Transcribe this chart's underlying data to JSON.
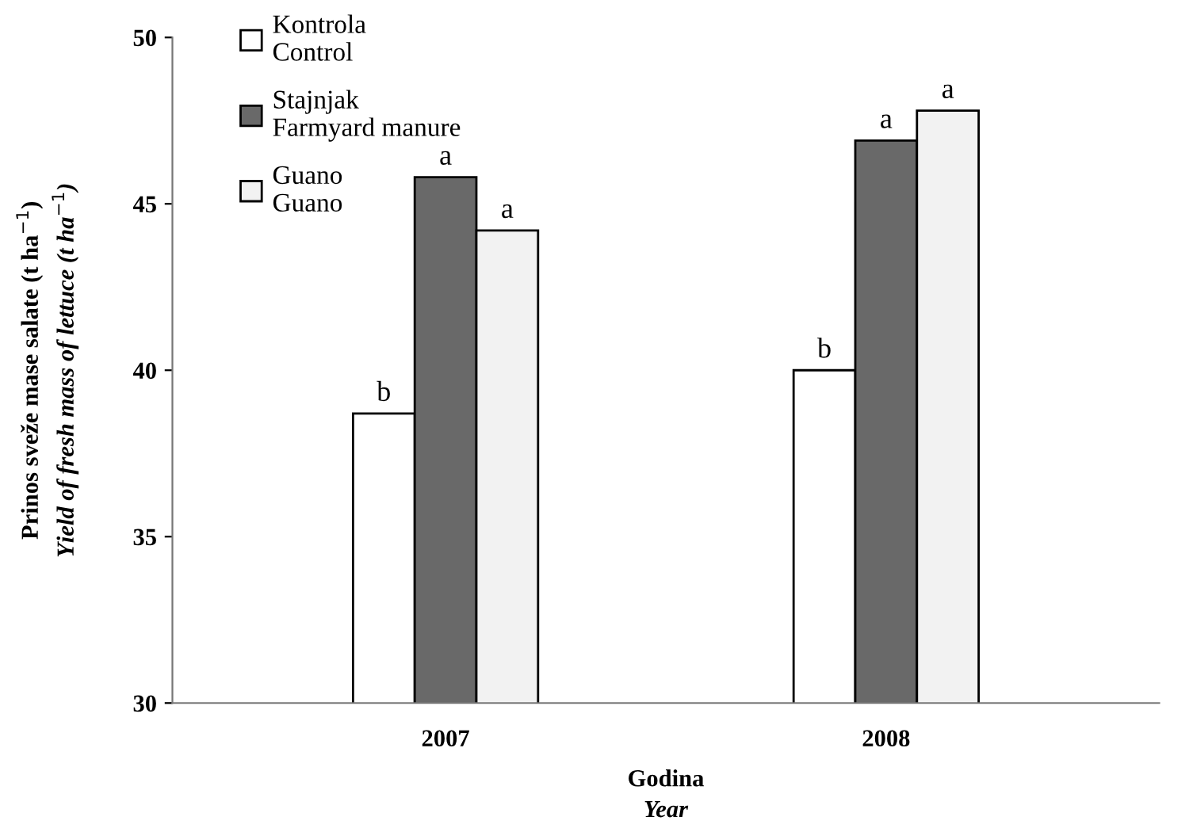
{
  "chart_data": {
    "type": "bar",
    "categories": [
      "2007",
      "2008"
    ],
    "series": [
      {
        "name": "Kontrola\nControl",
        "color": "#ffffff",
        "values": [
          38.7,
          40.0
        ],
        "value_labels": [
          "b",
          "b"
        ]
      },
      {
        "name": "Stajnjak\nFarmyard manure",
        "color": "#696969",
        "values": [
          45.8,
          46.9
        ],
        "value_labels": [
          "a",
          "a"
        ]
      },
      {
        "name": "Guano\nGuano",
        "color": "#f2f2f2",
        "values": [
          44.2,
          47.8
        ],
        "value_labels": [
          "a",
          "a"
        ]
      }
    ],
    "ylabel": "Prinos sveže mase salate (t ha$^{−1}$)\nYield of fresh mass of lettuce (t ha$^{−1}$)",
    "xlabel": "Godina\nYear",
    "ylim": [
      30,
      50
    ],
    "yticks": [
      30,
      35,
      40,
      45,
      50
    ],
    "legend": "top left",
    "grid": false
  }
}
